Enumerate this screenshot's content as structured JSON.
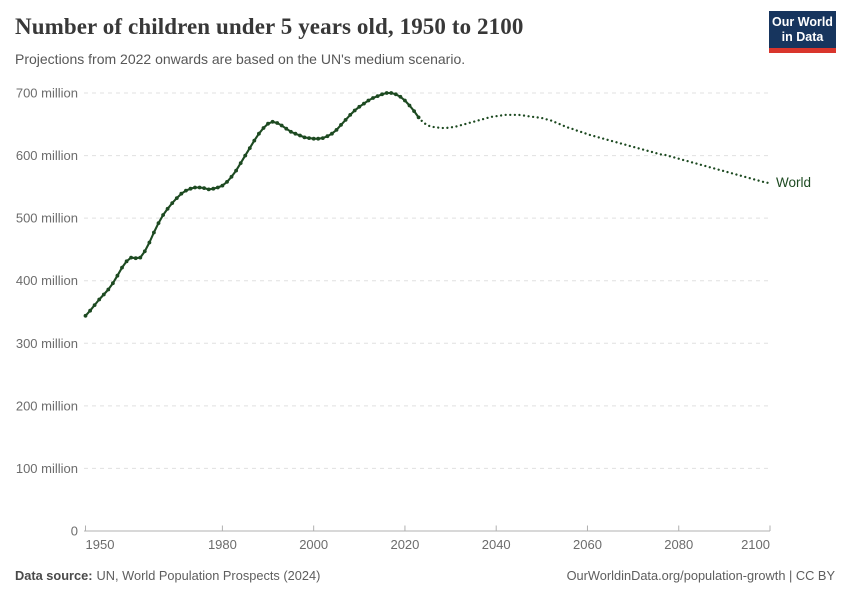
{
  "header": {
    "title": "Number of children under 5 years old, 1950 to 2100",
    "subtitle": "Projections from 2022 onwards are based on the UN's medium scenario."
  },
  "logo": {
    "line1": "Our World",
    "line2": "in Data",
    "bg_color": "#17355e",
    "accent_color": "#d9352c"
  },
  "chart_data": {
    "type": "line",
    "title": "Number of children under 5 years old, 1950 to 2100",
    "subtitle": "Projections from 2022 onwards are based on the UN's medium scenario.",
    "xlabel": "",
    "ylabel": "",
    "unit": "million",
    "xlim": [
      1950,
      2100
    ],
    "ylim": [
      0,
      700
    ],
    "grid": true,
    "series_label": "World",
    "line_color": "#1d4a21",
    "axis_color": "#b0b0b0",
    "grid_color": "#e0e0e0",
    "tick_label_color": "#6c6c6c",
    "yticks": [
      {
        "value": 0,
        "label": "0"
      },
      {
        "value": 100,
        "label": "100 million"
      },
      {
        "value": 200,
        "label": "200 million"
      },
      {
        "value": 300,
        "label": "300 million"
      },
      {
        "value": 400,
        "label": "400 million"
      },
      {
        "value": 500,
        "label": "500 million"
      },
      {
        "value": 600,
        "label": "600 million"
      },
      {
        "value": 700,
        "label": "700 million"
      }
    ],
    "xticks": [
      {
        "value": 1950,
        "label": "1950",
        "align": "start"
      },
      {
        "value": 1980,
        "label": "1980",
        "align": "middle"
      },
      {
        "value": 2000,
        "label": "2000",
        "align": "middle"
      },
      {
        "value": 2020,
        "label": "2020",
        "align": "middle"
      },
      {
        "value": 2040,
        "label": "2040",
        "align": "middle"
      },
      {
        "value": 2060,
        "label": "2060",
        "align": "middle"
      },
      {
        "value": 2080,
        "label": "2080",
        "align": "middle"
      },
      {
        "value": 2100,
        "label": "2100",
        "align": "end"
      }
    ],
    "series": [
      {
        "name": "World (observed)",
        "style": "solid_with_markers",
        "points": [
          [
            1950,
            344
          ],
          [
            1951,
            352
          ],
          [
            1952,
            361
          ],
          [
            1953,
            370
          ],
          [
            1954,
            378
          ],
          [
            1955,
            386
          ],
          [
            1956,
            396
          ],
          [
            1957,
            408
          ],
          [
            1958,
            421
          ],
          [
            1959,
            431
          ],
          [
            1960,
            437
          ],
          [
            1961,
            436
          ],
          [
            1962,
            437
          ],
          [
            1963,
            447
          ],
          [
            1964,
            461
          ],
          [
            1965,
            477
          ],
          [
            1966,
            492
          ],
          [
            1967,
            505
          ],
          [
            1968,
            515
          ],
          [
            1969,
            524
          ],
          [
            1970,
            532
          ],
          [
            1971,
            539
          ],
          [
            1972,
            544
          ],
          [
            1973,
            547
          ],
          [
            1974,
            549
          ],
          [
            1975,
            549
          ],
          [
            1976,
            548
          ],
          [
            1977,
            546
          ],
          [
            1978,
            547
          ],
          [
            1979,
            549
          ],
          [
            1980,
            552
          ],
          [
            1981,
            558
          ],
          [
            1982,
            566
          ],
          [
            1983,
            576
          ],
          [
            1984,
            588
          ],
          [
            1985,
            600
          ],
          [
            1986,
            612
          ],
          [
            1987,
            624
          ],
          [
            1988,
            635
          ],
          [
            1989,
            644
          ],
          [
            1990,
            651
          ],
          [
            1991,
            654
          ],
          [
            1992,
            652
          ],
          [
            1993,
            648
          ],
          [
            1994,
            643
          ],
          [
            1995,
            638
          ],
          [
            1996,
            635
          ],
          [
            1997,
            632
          ],
          [
            1998,
            629
          ],
          [
            1999,
            628
          ],
          [
            2000,
            627
          ],
          [
            2001,
            627
          ],
          [
            2002,
            628
          ],
          [
            2003,
            631
          ],
          [
            2004,
            635
          ],
          [
            2005,
            641
          ],
          [
            2006,
            649
          ],
          [
            2007,
            657
          ],
          [
            2008,
            665
          ],
          [
            2009,
            672
          ],
          [
            2010,
            678
          ],
          [
            2011,
            683
          ],
          [
            2012,
            688
          ],
          [
            2013,
            692
          ],
          [
            2014,
            695
          ],
          [
            2015,
            698
          ],
          [
            2016,
            700
          ],
          [
            2017,
            700
          ],
          [
            2018,
            698
          ],
          [
            2019,
            694
          ],
          [
            2020,
            688
          ],
          [
            2021,
            680
          ],
          [
            2022,
            671
          ],
          [
            2023,
            661
          ]
        ]
      },
      {
        "name": "World (projected, UN medium scenario)",
        "style": "dotted",
        "points": [
          [
            2023,
            661
          ],
          [
            2024,
            653
          ],
          [
            2025,
            648
          ],
          [
            2026,
            646
          ],
          [
            2027,
            645
          ],
          [
            2028,
            644
          ],
          [
            2029,
            644
          ],
          [
            2030,
            645
          ],
          [
            2031,
            646
          ],
          [
            2032,
            648
          ],
          [
            2033,
            650
          ],
          [
            2034,
            652
          ],
          [
            2035,
            654
          ],
          [
            2036,
            656
          ],
          [
            2037,
            658
          ],
          [
            2038,
            660
          ],
          [
            2039,
            662
          ],
          [
            2040,
            663
          ],
          [
            2041,
            664
          ],
          [
            2042,
            665
          ],
          [
            2043,
            665
          ],
          [
            2044,
            665
          ],
          [
            2045,
            665
          ],
          [
            2046,
            664
          ],
          [
            2047,
            663
          ],
          [
            2048,
            662
          ],
          [
            2049,
            661
          ],
          [
            2050,
            660
          ],
          [
            2051,
            658
          ],
          [
            2052,
            656
          ],
          [
            2053,
            653
          ],
          [
            2054,
            650
          ],
          [
            2055,
            647
          ],
          [
            2056,
            644
          ],
          [
            2057,
            642
          ],
          [
            2058,
            639
          ],
          [
            2059,
            637
          ],
          [
            2060,
            634
          ],
          [
            2061,
            632
          ],
          [
            2062,
            630
          ],
          [
            2063,
            628
          ],
          [
            2064,
            626
          ],
          [
            2065,
            624
          ],
          [
            2066,
            622
          ],
          [
            2067,
            620
          ],
          [
            2068,
            618
          ],
          [
            2069,
            616
          ],
          [
            2070,
            614
          ],
          [
            2071,
            612
          ],
          [
            2072,
            610
          ],
          [
            2073,
            608
          ],
          [
            2074,
            606
          ],
          [
            2075,
            604
          ],
          [
            2076,
            602
          ],
          [
            2077,
            601
          ],
          [
            2078,
            599
          ],
          [
            2079,
            597
          ],
          [
            2080,
            595
          ],
          [
            2081,
            593
          ],
          [
            2082,
            591
          ],
          [
            2083,
            589
          ],
          [
            2084,
            587
          ],
          [
            2085,
            585
          ],
          [
            2086,
            583
          ],
          [
            2087,
            581
          ],
          [
            2088,
            579
          ],
          [
            2089,
            577
          ],
          [
            2090,
            575
          ],
          [
            2091,
            573
          ],
          [
            2092,
            571
          ],
          [
            2093,
            569
          ],
          [
            2094,
            567
          ],
          [
            2095,
            565
          ],
          [
            2096,
            563
          ],
          [
            2097,
            561
          ],
          [
            2098,
            559
          ],
          [
            2099,
            557
          ],
          [
            2100,
            556
          ]
        ]
      }
    ]
  },
  "footer": {
    "data_source_label": "Data source:",
    "data_source_value": "UN, World Population Prospects (2024)",
    "right_text": "OurWorldinData.org/population-growth | CC BY"
  }
}
